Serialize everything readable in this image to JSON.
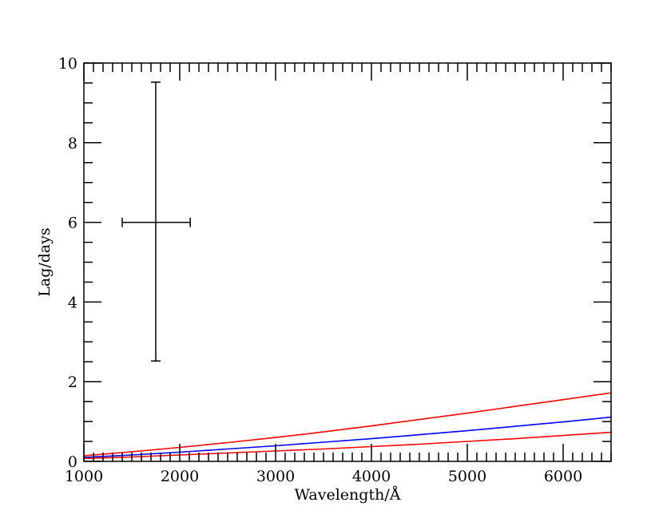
{
  "chart_data": {
    "type": "line",
    "xlabel": "Wavelength/Å",
    "ylabel": "Lag/days",
    "xlim": [
      1000,
      6500
    ],
    "ylim": [
      0,
      10
    ],
    "x_ticks": [
      1000,
      2000,
      3000,
      4000,
      5000,
      6000
    ],
    "y_ticks": [
      0,
      2,
      4,
      6,
      8,
      10
    ],
    "grid": false,
    "series": [
      {
        "color": "#ff0000",
        "x": [
          1000,
          1500,
          2000,
          2500,
          3000,
          3500,
          4000,
          4500,
          5000,
          5500,
          6000,
          6500
        ],
        "y": [
          0.14,
          0.24,
          0.35,
          0.47,
          0.6,
          0.74,
          0.89,
          1.05,
          1.21,
          1.38,
          1.55,
          1.72
        ]
      },
      {
        "color": "#0000ff",
        "x": [
          1000,
          1500,
          2000,
          2500,
          3000,
          3500,
          4000,
          4500,
          5000,
          5500,
          6000,
          6500
        ],
        "y": [
          0.1,
          0.16,
          0.23,
          0.31,
          0.39,
          0.48,
          0.57,
          0.67,
          0.77,
          0.88,
          0.99,
          1.11
        ]
      },
      {
        "color": "#ff0000",
        "x": [
          1000,
          1500,
          2000,
          2500,
          3000,
          3500,
          4000,
          4500,
          5000,
          5500,
          6000,
          6500
        ],
        "y": [
          0.07,
          0.11,
          0.16,
          0.21,
          0.26,
          0.31,
          0.37,
          0.43,
          0.5,
          0.57,
          0.65,
          0.73
        ]
      }
    ],
    "error_point": {
      "x": 1750,
      "y": 6.0,
      "x_err": [
        1400,
        2110
      ],
      "y_err": [
        2.52,
        9.52
      ],
      "color": "#000000"
    }
  }
}
